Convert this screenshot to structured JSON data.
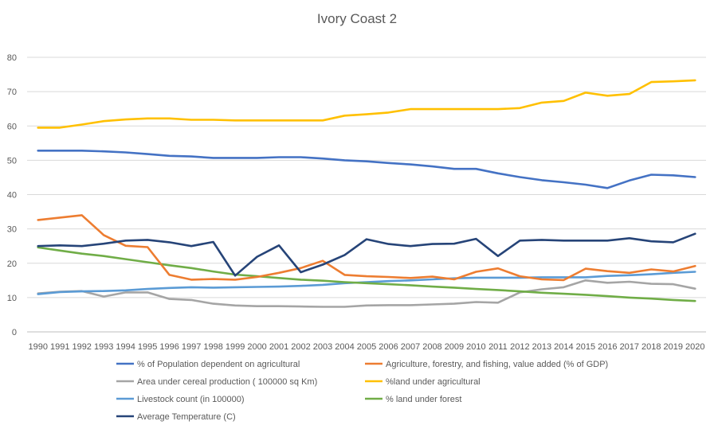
{
  "chart_data": {
    "type": "line",
    "title": "Ivory Coast 2",
    "ylim": [
      0,
      80
    ],
    "y_ticks": [
      0,
      10,
      20,
      30,
      40,
      50,
      60,
      70,
      80
    ],
    "grid": "horizontal",
    "legend_position": "bottom",
    "categories": [
      "1990",
      "1991",
      "1992",
      "1993",
      "1994",
      "1995",
      "1996",
      "1997",
      "1998",
      "1999",
      "2000",
      "2001",
      "2002",
      "2003",
      "2004",
      "2005",
      "2006",
      "2007",
      "2008",
      "2009",
      "2010",
      "2011",
      "2012",
      "2013",
      "2014",
      "2015",
      "2016",
      "2017",
      "2018",
      "2019",
      "2020"
    ],
    "series": [
      {
        "name": "% of Population dependent on agricultural",
        "color": "#4472C4",
        "values": [
          52.8,
          52.8,
          52.8,
          52.6,
          52.3,
          51.8,
          51.3,
          51.1,
          50.7,
          50.7,
          50.7,
          50.9,
          50.9,
          50.5,
          50.0,
          49.7,
          49.2,
          48.8,
          48.2,
          47.5,
          47.5,
          46.2,
          45.1,
          44.2,
          43.6,
          42.9,
          41.9,
          44.1,
          45.8,
          45.6,
          45.1
        ]
      },
      {
        "name": "Agriculture, forestry, and fishing, value added (% of GDP)",
        "color": "#ED7D31",
        "values": [
          32.6,
          33.3,
          34.0,
          28.2,
          25.1,
          24.7,
          16.6,
          15.2,
          15.4,
          15.2,
          16.0,
          17.2,
          18.6,
          20.7,
          16.6,
          16.2,
          16.0,
          15.7,
          16.1,
          15.3,
          17.5,
          18.5,
          16.2,
          15.3,
          15.1,
          18.4,
          17.7,
          17.2,
          18.2,
          17.6,
          19.2
        ]
      },
      {
        "name": "Area under cereal production ( 100000 sq Km)",
        "color": "#A5A5A5",
        "values": [
          11.2,
          11.7,
          11.9,
          10.3,
          11.5,
          11.5,
          9.6,
          9.3,
          8.2,
          7.7,
          7.5,
          7.5,
          7.4,
          7.3,
          7.3,
          7.7,
          7.8,
          7.8,
          8.0,
          8.2,
          8.7,
          8.5,
          11.5,
          12.4,
          13.0,
          15.0,
          14.3,
          14.6,
          14.0,
          13.9,
          12.6
        ]
      },
      {
        "name": "%land under agricultural",
        "color": "#FFC000",
        "values": [
          59.5,
          59.5,
          60.4,
          61.4,
          61.9,
          62.2,
          62.2,
          61.8,
          61.8,
          61.6,
          61.6,
          61.6,
          61.6,
          61.6,
          63.0,
          63.4,
          63.9,
          64.9,
          64.9,
          64.9,
          64.9,
          64.9,
          65.2,
          66.8,
          67.3,
          69.7,
          68.8,
          69.3,
          72.8,
          73.0,
          73.3
        ]
      },
      {
        "name": "Livestock count (in 100000)",
        "color": "#5B9BD5",
        "values": [
          11.0,
          11.6,
          11.8,
          11.9,
          12.1,
          12.5,
          12.8,
          13.0,
          12.9,
          13.0,
          13.1,
          13.2,
          13.4,
          13.7,
          14.2,
          14.5,
          14.8,
          15.0,
          15.3,
          15.6,
          15.8,
          15.8,
          15.8,
          15.9,
          15.9,
          15.9,
          16.3,
          16.5,
          16.8,
          17.2,
          17.5
        ]
      },
      {
        "name": "% land under forest",
        "color": "#70AD47",
        "values": [
          24.6,
          23.7,
          22.8,
          22.1,
          21.2,
          20.3,
          19.4,
          18.6,
          17.6,
          16.7,
          16.2,
          15.7,
          15.2,
          14.9,
          14.5,
          14.2,
          13.9,
          13.6,
          13.2,
          12.9,
          12.5,
          12.2,
          11.8,
          11.4,
          11.1,
          10.8,
          10.4,
          10.0,
          9.7,
          9.3,
          9.0
        ]
      },
      {
        "name": "Average Temperature (C)",
        "color": "#264478",
        "values": [
          25.0,
          25.2,
          25.0,
          25.7,
          26.6,
          26.8,
          26.1,
          25.0,
          26.2,
          16.4,
          21.9,
          25.2,
          17.4,
          19.6,
          22.4,
          27.0,
          25.6,
          25.0,
          25.6,
          25.7,
          27.1,
          22.1,
          26.6,
          26.8,
          26.6,
          26.6,
          26.6,
          27.3,
          26.4,
          26.1,
          28.6
        ]
      }
    ]
  }
}
